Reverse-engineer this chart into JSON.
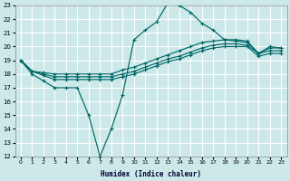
{
  "xlabel": "Humidex (Indice chaleur)",
  "bg_color": "#cce8e8",
  "grid_color": "#ffffff",
  "line_color": "#006868",
  "xlim": [
    -0.5,
    23.5
  ],
  "ylim": [
    12,
    23
  ],
  "xtick_labels": [
    "0",
    "1",
    "2",
    "3",
    "4",
    "5",
    "6",
    "7",
    "8",
    "9",
    "10",
    "11",
    "12",
    "13",
    "14",
    "15",
    "16",
    "17",
    "18",
    "19",
    "20",
    "21",
    "22",
    "23"
  ],
  "yticks": [
    12,
    13,
    14,
    15,
    16,
    17,
    18,
    19,
    20,
    21,
    22,
    23
  ],
  "line1_x": [
    0,
    1,
    2,
    3,
    4,
    5,
    6,
    7,
    8,
    9,
    10,
    11,
    12,
    13,
    14,
    15,
    16,
    17,
    18,
    19,
    20,
    21,
    22,
    23
  ],
  "line1_y": [
    19,
    18,
    17.5,
    17,
    17,
    17,
    15,
    12,
    14,
    16.5,
    20.5,
    21.2,
    21.8,
    23.2,
    23.0,
    22.5,
    21.7,
    21.2,
    20.5,
    20.4,
    20.3,
    19.5,
    20.0,
    19.9
  ],
  "line2_x": [
    0,
    1,
    2,
    3,
    4,
    5,
    6,
    7,
    8,
    9,
    10,
    11,
    12,
    13,
    14,
    15,
    16,
    17,
    18,
    19,
    20,
    21,
    22,
    23
  ],
  "line2_y": [
    19.0,
    18.2,
    18.1,
    18.0,
    18.0,
    18.0,
    18.0,
    18.0,
    18.0,
    18.3,
    18.5,
    18.8,
    19.1,
    19.4,
    19.7,
    20.0,
    20.3,
    20.4,
    20.5,
    20.5,
    20.4,
    19.5,
    19.9,
    19.9
  ],
  "line3_x": [
    0,
    1,
    2,
    3,
    4,
    5,
    6,
    7,
    8,
    9,
    10,
    11,
    12,
    13,
    14,
    15,
    16,
    17,
    18,
    19,
    20,
    21,
    22,
    23
  ],
  "line3_y": [
    19.0,
    18.2,
    18.0,
    17.8,
    17.8,
    17.8,
    17.8,
    17.8,
    17.8,
    18.0,
    18.2,
    18.5,
    18.8,
    19.1,
    19.3,
    19.6,
    19.9,
    20.1,
    20.2,
    20.2,
    20.1,
    19.5,
    19.7,
    19.7
  ],
  "line4_x": [
    0,
    1,
    2,
    3,
    4,
    5,
    6,
    7,
    8,
    9,
    10,
    11,
    12,
    13,
    14,
    15,
    16,
    17,
    18,
    19,
    20,
    21,
    22,
    23
  ],
  "line4_y": [
    19.0,
    18.2,
    17.9,
    17.6,
    17.6,
    17.6,
    17.6,
    17.6,
    17.6,
    17.8,
    18.0,
    18.3,
    18.6,
    18.9,
    19.1,
    19.4,
    19.7,
    19.9,
    20.0,
    20.0,
    20.0,
    19.3,
    19.5,
    19.5
  ]
}
